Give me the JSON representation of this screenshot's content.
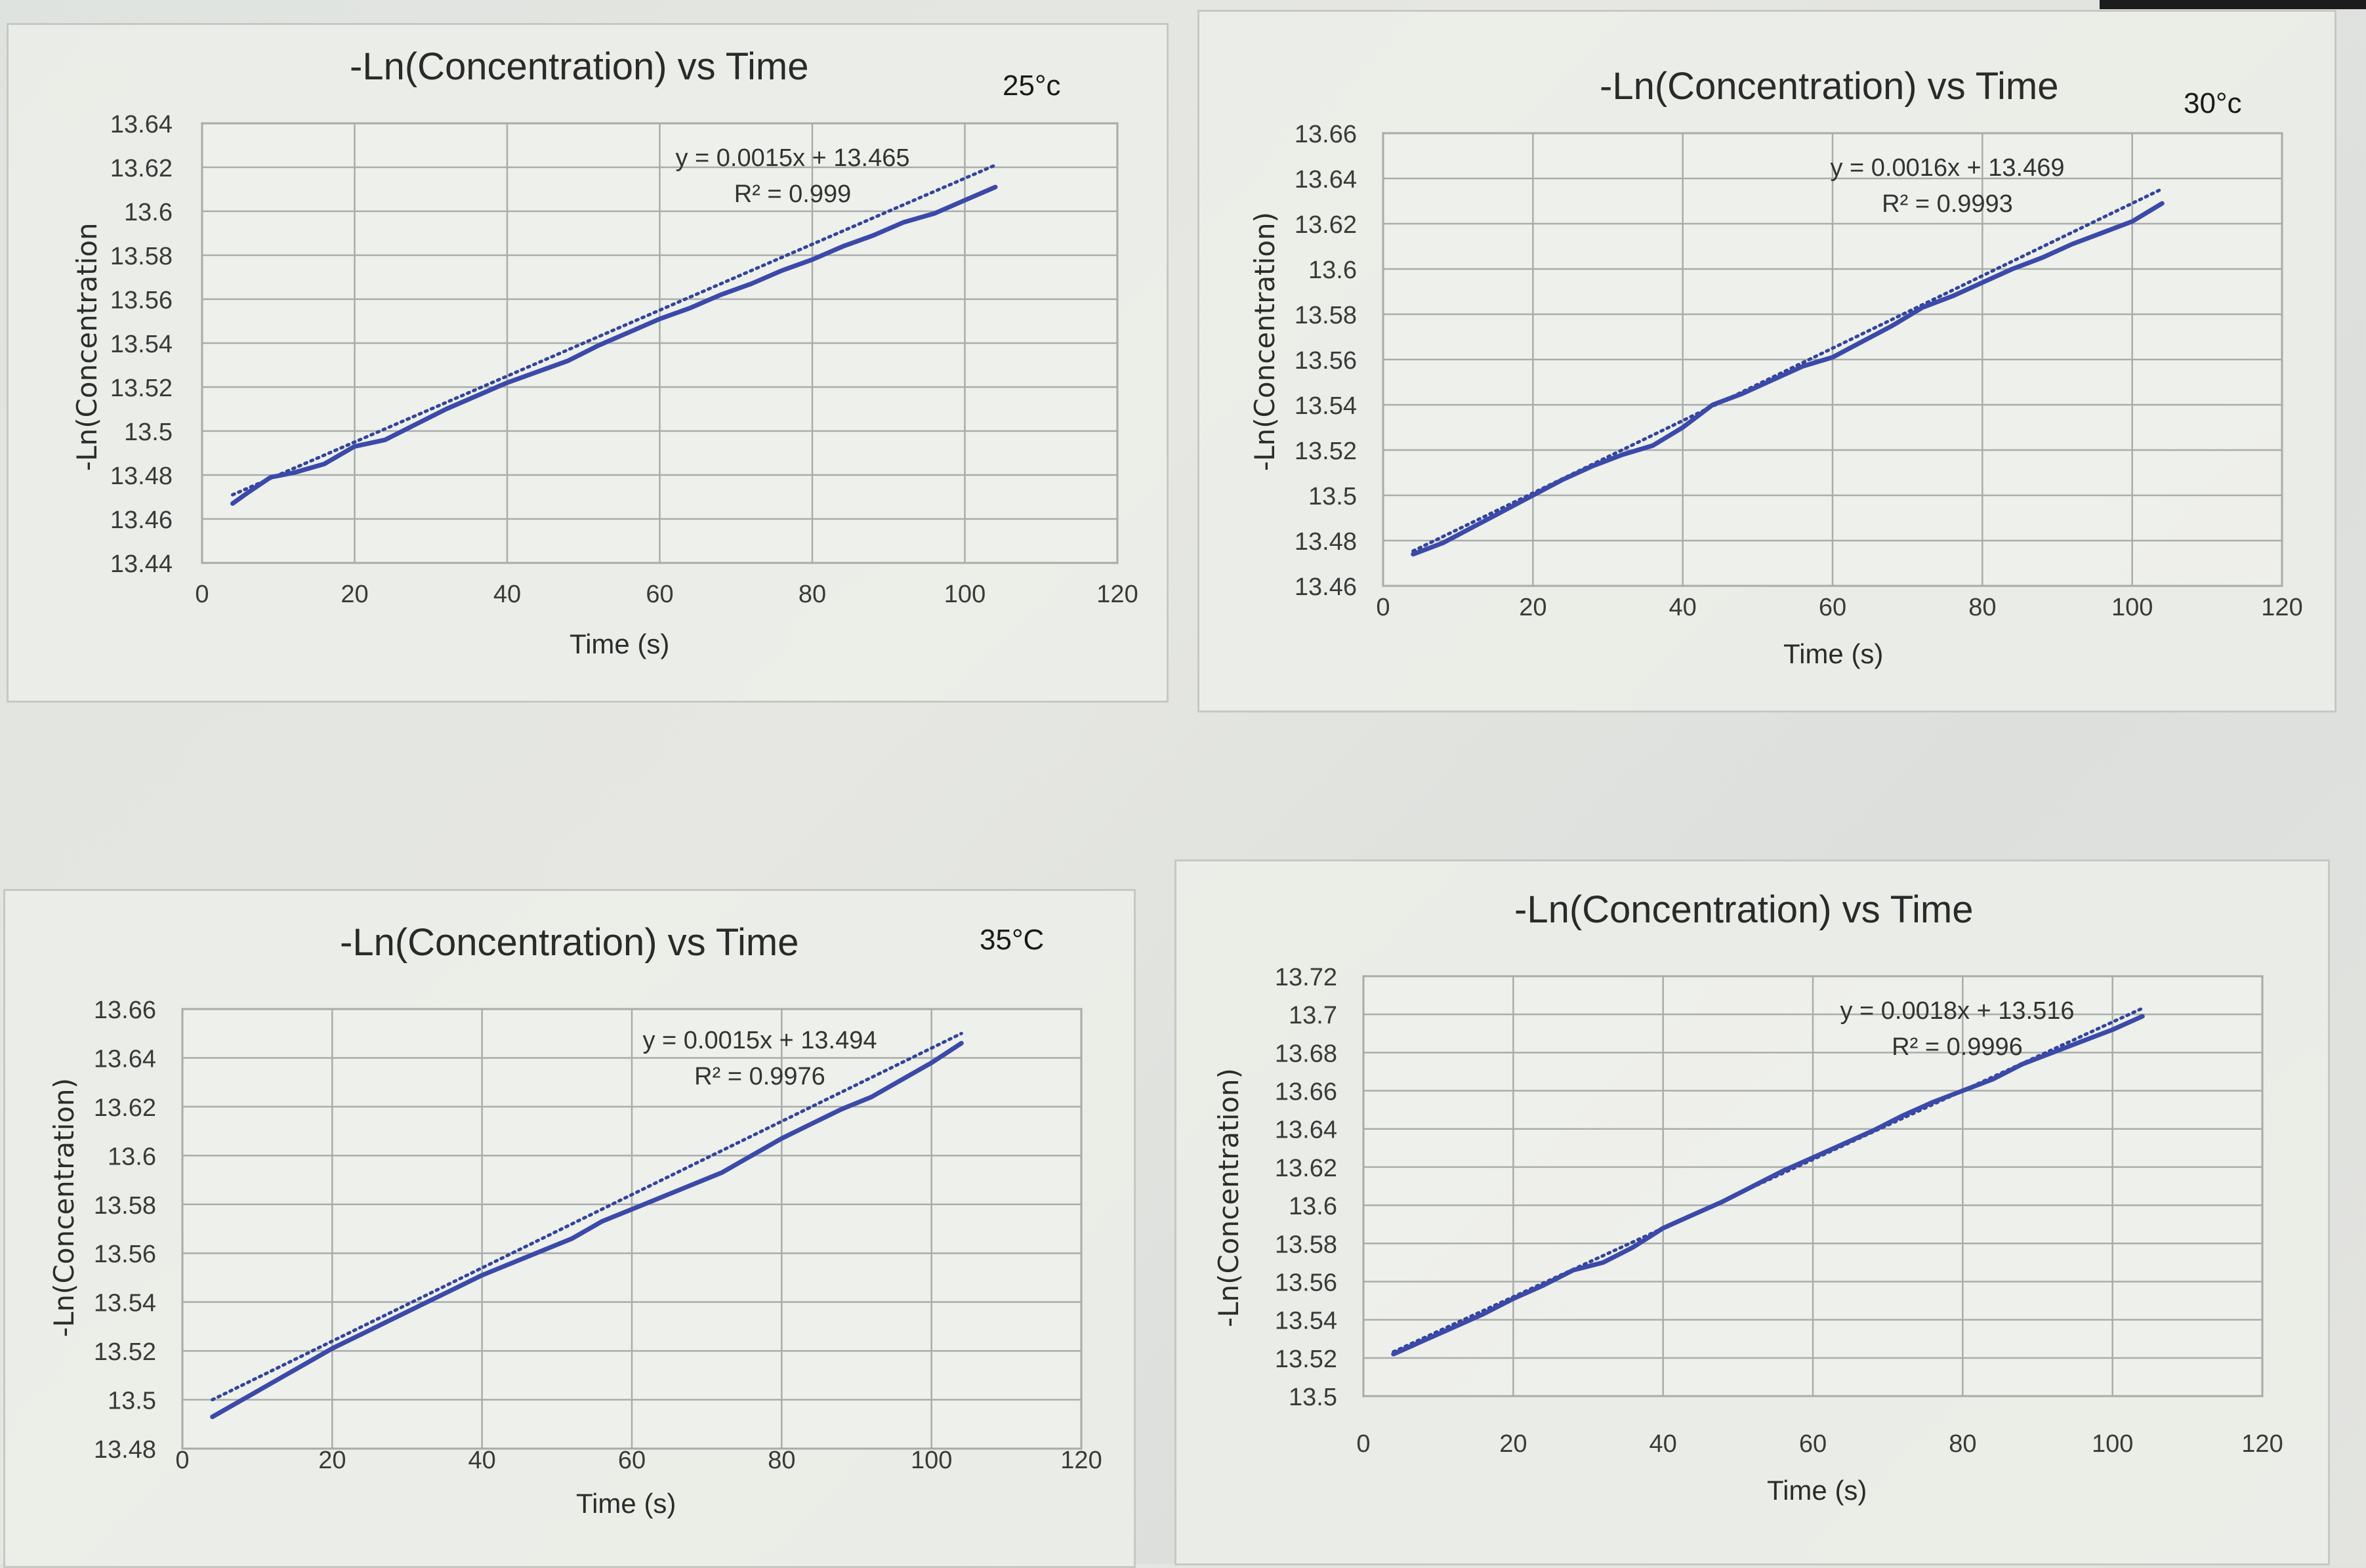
{
  "chart_data": [
    {
      "id": "chart-25c",
      "type": "line",
      "title": "-Ln(Concentration) vs Time",
      "temperature_label": "25°c",
      "xlabel": "Time (s)",
      "ylabel": "-Ln(Concentration",
      "xlim": [
        0,
        120
      ],
      "ylim": [
        13.44,
        13.64
      ],
      "x_ticks": [
        "0",
        "20",
        "40",
        "60",
        "80",
        "100",
        "120"
      ],
      "y_ticks": [
        "13.64",
        "13.62",
        "13.6",
        "13.58",
        "13.56",
        "13.54",
        "13.52",
        "13.5",
        "13.48",
        "13.46",
        "13.44"
      ],
      "grid": true,
      "legend": null,
      "trendline": {
        "type": "linear",
        "style": "dotted",
        "equation": "y = 0.0015x + 13.465",
        "r_squared": "R² = 0.999",
        "slope": 0.0015,
        "intercept": 13.465
      },
      "series": [
        {
          "name": "-Ln(Concentration)",
          "color": "#3b4aa8",
          "x": [
            4,
            6,
            9,
            12,
            16,
            20,
            24,
            28,
            32,
            36,
            40,
            44,
            48,
            52,
            56,
            60,
            64,
            68,
            72,
            76,
            80,
            84,
            88,
            92,
            96,
            100,
            104
          ],
          "y": [
            13.467,
            13.472,
            13.479,
            13.481,
            13.485,
            13.493,
            13.496,
            13.503,
            13.51,
            13.516,
            13.522,
            13.527,
            13.532,
            13.539,
            13.545,
            13.551,
            13.556,
            13.562,
            13.567,
            13.573,
            13.578,
            13.584,
            13.589,
            13.595,
            13.599,
            13.605,
            13.611
          ]
        }
      ]
    },
    {
      "id": "chart-30c",
      "type": "line",
      "title": "-Ln(Concentration) vs Time",
      "temperature_label": "30°c",
      "xlabel": "Time (s)",
      "ylabel": "-Ln(Concentration)",
      "xlim": [
        0,
        120
      ],
      "ylim": [
        13.46,
        13.66
      ],
      "x_ticks": [
        "0",
        "20",
        "40",
        "60",
        "80",
        "100",
        "120"
      ],
      "y_ticks": [
        "13.66",
        "13.64",
        "13.62",
        "13.6",
        "13.58",
        "13.56",
        "13.54",
        "13.52",
        "13.5",
        "13.48",
        "13.46"
      ],
      "grid": true,
      "legend": null,
      "trendline": {
        "type": "linear",
        "style": "dotted",
        "equation": "y = 0.0016x + 13.469",
        "r_squared": "R² = 0.9993",
        "slope": 0.0016,
        "intercept": 13.469
      },
      "series": [
        {
          "name": "-Ln(Concentration)",
          "color": "#3b4aa8",
          "x": [
            4,
            8,
            12,
            16,
            20,
            24,
            28,
            32,
            36,
            40,
            44,
            48,
            52,
            56,
            60,
            64,
            68,
            72,
            76,
            80,
            84,
            88,
            92,
            96,
            100,
            104
          ],
          "y": [
            13.474,
            13.479,
            13.486,
            13.493,
            13.5,
            13.507,
            13.513,
            13.518,
            13.522,
            13.53,
            13.54,
            13.545,
            13.551,
            13.557,
            13.561,
            13.568,
            13.575,
            13.583,
            13.588,
            13.594,
            13.6,
            13.605,
            13.611,
            13.616,
            13.621,
            13.629
          ]
        }
      ]
    },
    {
      "id": "chart-35c",
      "type": "line",
      "title": "-Ln(Concentration) vs Time",
      "temperature_label": "35°C",
      "xlabel": "Time (s)",
      "ylabel": "-Ln(Concentration)",
      "xlim": [
        0,
        120
      ],
      "ylim": [
        13.48,
        13.66
      ],
      "x_ticks": [
        "0",
        "20",
        "40",
        "60",
        "80",
        "100",
        "120"
      ],
      "y_ticks": [
        "13.66",
        "13.64",
        "13.62",
        "13.6",
        "13.58",
        "13.56",
        "13.54",
        "13.52",
        "13.5",
        "13.48"
      ],
      "grid": true,
      "legend": null,
      "trendline": {
        "type": "linear",
        "style": "dotted",
        "equation": "y = 0.0015x + 13.494",
        "r_squared": "R² = 0.9976",
        "slope": 0.0015,
        "intercept": 13.494
      },
      "series": [
        {
          "name": "-Ln(Concentration)",
          "color": "#3b4aa8",
          "x": [
            4,
            8,
            12,
            16,
            20,
            24,
            28,
            32,
            36,
            40,
            44,
            48,
            52,
            56,
            60,
            64,
            68,
            72,
            76,
            80,
            84,
            88,
            92,
            96,
            100,
            104
          ],
          "y": [
            13.493,
            13.5,
            13.507,
            13.514,
            13.521,
            13.527,
            13.533,
            13.539,
            13.545,
            13.551,
            13.556,
            13.561,
            13.566,
            13.573,
            13.578,
            13.583,
            13.588,
            13.593,
            13.6,
            13.607,
            13.613,
            13.619,
            13.624,
            13.631,
            13.638,
            13.646
          ]
        }
      ]
    },
    {
      "id": "chart-4",
      "type": "line",
      "title": "-Ln(Concentration) vs Time",
      "temperature_label": "",
      "xlabel": "Time (s)",
      "ylabel": "-Ln(Concentration)",
      "xlim": [
        0,
        120
      ],
      "ylim": [
        13.5,
        13.72
      ],
      "x_ticks": [
        "0",
        "20",
        "40",
        "60",
        "80",
        "100",
        "120"
      ],
      "y_ticks": [
        "13.72",
        "13.7",
        "13.68",
        "13.66",
        "13.64",
        "13.62",
        "13.6",
        "13.58",
        "13.56",
        "13.54",
        "13.52",
        "13.5"
      ],
      "grid": true,
      "legend": null,
      "trendline": {
        "type": "linear",
        "style": "dotted",
        "equation": "y = 0.0018x + 13.516",
        "r_squared": "R² = 0.9996",
        "slope": 0.0018,
        "intercept": 13.516
      },
      "series": [
        {
          "name": "-Ln(Concentration)",
          "color": "#3b4aa8",
          "x": [
            4,
            8,
            12,
            16,
            20,
            24,
            28,
            32,
            36,
            40,
            44,
            48,
            52,
            56,
            60,
            64,
            68,
            72,
            76,
            80,
            84,
            88,
            92,
            96,
            100,
            104
          ],
          "y": [
            13.522,
            13.529,
            13.536,
            13.543,
            13.551,
            13.558,
            13.566,
            13.57,
            13.578,
            13.588,
            13.595,
            13.602,
            13.61,
            13.618,
            13.625,
            13.632,
            13.639,
            13.647,
            13.654,
            13.66,
            13.666,
            13.674,
            13.68,
            13.686,
            13.692,
            13.699
          ]
        }
      ]
    }
  ],
  "panels": [
    {
      "title": "-Ln(Concentration) vs Time",
      "temp": "25°c",
      "xlabel": "Time (s)",
      "ylabel": "-Ln(Concentration"
    },
    {
      "title": "-Ln(Concentration) vs Time",
      "temp": "30°c",
      "xlabel": "Time (s)",
      "ylabel": "-Ln(Concentration)"
    },
    {
      "title": "-Ln(Concentration) vs Time",
      "temp": "35°C",
      "xlabel": "Time (s)",
      "ylabel": "-Ln(Concentration)"
    },
    {
      "title": "-Ln(Concentration) vs Time",
      "temp": "",
      "xlabel": "Time (s)",
      "ylabel": "-Ln(Concentration)"
    }
  ]
}
